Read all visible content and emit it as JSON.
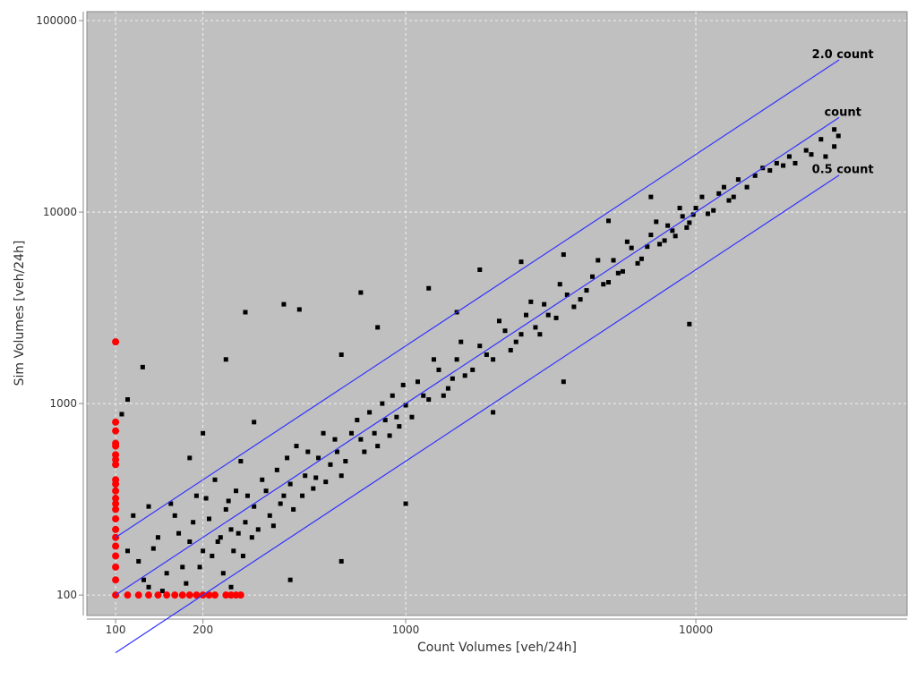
{
  "chart_data": {
    "type": "scatter",
    "x_label": "Count Volumes [veh/24h]",
    "y_label": "Sim Volumes [veh/24h]",
    "log_x": true,
    "log_y": true,
    "grid": true,
    "background": "#c0c0c0",
    "xlim": [
      79.6,
      53500
    ],
    "ylim": [
      78.2,
      111400
    ],
    "xticks": [
      100,
      200,
      1000,
      10000
    ],
    "yticks": [
      100,
      1000,
      10000,
      100000
    ],
    "reference_lines": [
      {
        "label": "2.0 count",
        "factor": 2,
        "color": "#3333ff",
        "x": [
          100,
          31200
        ]
      },
      {
        "label": "count",
        "factor": 1,
        "color": "#3333ff",
        "x": [
          100,
          31200
        ]
      },
      {
        "label": "0.5 count",
        "factor": 0.5,
        "color": "#3333ff",
        "x": [
          100,
          31200
        ]
      }
    ],
    "series": [
      {
        "color": "#000000",
        "marker": "square",
        "x": [
          120,
          130,
          140,
          150,
          160,
          170,
          180,
          190,
          200,
          210,
          220,
          230,
          240,
          250,
          260,
          270,
          280,
          300,
          320,
          340,
          360,
          380,
          400,
          420,
          450,
          480,
          500,
          520,
          550,
          580,
          600,
          650,
          700,
          750,
          800,
          850,
          900,
          950,
          1000,
          1100,
          1200,
          1300,
          1400,
          1500,
          1600,
          1800,
          2000,
          2200,
          2400,
          2600,
          2800,
          3000,
          3300,
          3600,
          4000,
          4400,
          4800,
          5200,
          5600,
          6000,
          6500,
          7000,
          7500,
          8000,
          8500,
          9000,
          9500,
          10000,
          11000,
          12000,
          13000,
          14000,
          15000,
          17000,
          19000,
          21000,
          24000,
          27000,
          30000,
          30000,
          31000,
          280,
          124,
          105,
          110,
          240,
          380,
          430,
          700,
          1200,
          1800,
          2500,
          3500,
          5000,
          7000,
          9500,
          3500,
          2000,
          1000,
          600,
          400,
          250,
          800,
          1500,
          600,
          300,
          200,
          180,
          130,
          110,
          115,
          125,
          135,
          145,
          155,
          165,
          175,
          185,
          195,
          205,
          215,
          225,
          235,
          245,
          255,
          265,
          275,
          285,
          295,
          310,
          330,
          350,
          370,
          390,
          410,
          440,
          460,
          490,
          530,
          570,
          620,
          680,
          720,
          780,
          830,
          880,
          930,
          980,
          1050,
          1150,
          1250,
          1350,
          1450,
          1550,
          1700,
          1900,
          2100,
          2300,
          2500,
          2700,
          2900,
          3100,
          3400,
          3800,
          4200,
          4600,
          5000,
          5400,
          5800,
          6300,
          6800,
          7300,
          7800,
          8300,
          8800,
          9300,
          9800,
          10500,
          11500,
          12500,
          13500,
          16000,
          18000,
          20000,
          22000,
          25000,
          28000
        ],
        "values": [
          150,
          110,
          200,
          130,
          260,
          140,
          190,
          330,
          170,
          250,
          400,
          200,
          280,
          220,
          350,
          500,
          240,
          290,
          400,
          260,
          450,
          330,
          380,
          600,
          420,
          360,
          520,
          700,
          480,
          560,
          420,
          700,
          650,
          900,
          600,
          820,
          1100,
          760,
          980,
          1300,
          1050,
          1500,
          1200,
          1700,
          1400,
          2000,
          1700,
          2400,
          2100,
          2900,
          2500,
          3300,
          2800,
          3700,
          3500,
          4600,
          4200,
          5600,
          4900,
          6500,
          5700,
          7600,
          6800,
          8500,
          7500,
          9500,
          8800,
          10500,
          9800,
          12500,
          11500,
          14800,
          13500,
          17000,
          18000,
          19500,
          21000,
          24000,
          22000,
          27000,
          25000,
          3000,
          1550,
          880,
          1050,
          1700,
          3300,
          3100,
          3800,
          4000,
          5000,
          5500,
          6000,
          9000,
          12000,
          2600,
          1300,
          900,
          300,
          150,
          120,
          110,
          2500,
          3000,
          1800,
          800,
          700,
          520,
          290,
          170,
          260,
          120,
          175,
          105,
          300,
          210,
          115,
          240,
          140,
          320,
          160,
          190,
          130,
          310,
          170,
          210,
          160,
          330,
          200,
          220,
          350,
          230,
          300,
          520,
          280,
          330,
          560,
          410,
          390,
          650,
          500,
          820,
          560,
          700,
          1000,
          680,
          850,
          1250,
          850,
          1100,
          1700,
          1100,
          1350,
          2100,
          1500,
          1800,
          2700,
          1900,
          2300,
          3400,
          2300,
          2900,
          4200,
          3200,
          3900,
          5600,
          4300,
          4800,
          7000,
          5400,
          6600,
          8900,
          7100,
          8000,
          10500,
          8300,
          9700,
          12000,
          10200,
          13500,
          12000,
          15500,
          16500,
          17500,
          18000,
          20000,
          19500
        ]
      },
      {
        "color": "#ff0000",
        "marker": "circle",
        "x": [
          100,
          100,
          100,
          100,
          100,
          100,
          100,
          100,
          100,
          100,
          100,
          100,
          100,
          100,
          100,
          100,
          100,
          100,
          100,
          100,
          100,
          100,
          110,
          120,
          130,
          140,
          150,
          160,
          170,
          180,
          190,
          200,
          210,
          220,
          240,
          250,
          260,
          270
        ],
        "values": [
          2100,
          800,
          720,
          620,
          600,
          540,
          510,
          480,
          400,
          380,
          350,
          320,
          300,
          280,
          250,
          220,
          200,
          180,
          160,
          140,
          120,
          100,
          100,
          100,
          100,
          100,
          100,
          100,
          100,
          100,
          100,
          100,
          100,
          100,
          100,
          100,
          100,
          100
        ]
      }
    ]
  }
}
